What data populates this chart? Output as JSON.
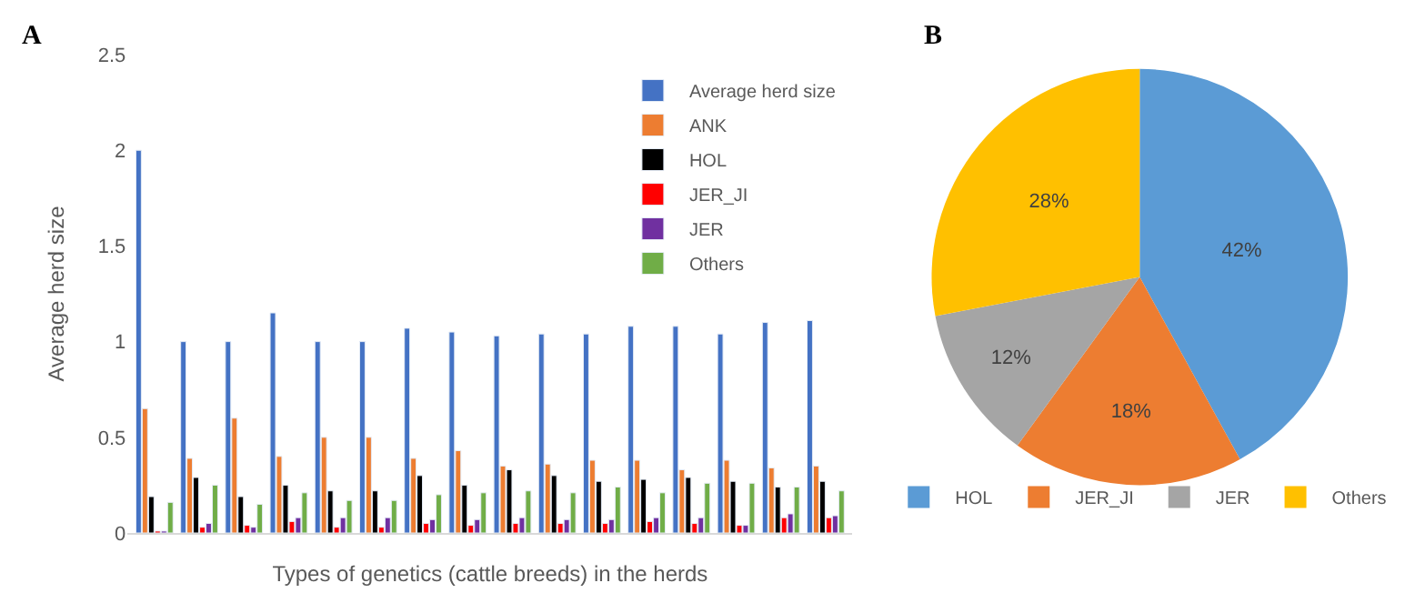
{
  "chart_data": [
    {
      "type": "bar",
      "title": "A",
      "xlabel": "Types of genetics (cattle breeds) in the herds",
      "ylabel": "Average herd size",
      "categories": [
        null,
        null,
        null,
        null,
        null,
        null,
        null,
        null,
        null,
        null,
        null,
        null,
        null,
        null,
        null,
        null
      ],
      "series": [
        {
          "name": "Average herd size",
          "color": "#4472c4",
          "values": [
            2.0,
            1.0,
            1.0,
            1.15,
            1.0,
            1.0,
            1.07,
            1.05,
            1.03,
            1.04,
            1.04,
            1.08,
            1.08,
            1.04,
            1.1,
            1.11
          ]
        },
        {
          "name": "ANK",
          "color": "#ed7d31",
          "values": [
            0.65,
            0.39,
            0.6,
            0.4,
            0.5,
            0.5,
            0.39,
            0.43,
            0.35,
            0.36,
            0.38,
            0.38,
            0.33,
            0.38,
            0.34,
            0.35
          ]
        },
        {
          "name": "HOL",
          "color": "#000000",
          "values": [
            0.19,
            0.29,
            0.19,
            0.25,
            0.22,
            0.22,
            0.3,
            0.25,
            0.33,
            0.3,
            0.27,
            0.28,
            0.29,
            0.27,
            0.24,
            0.27
          ]
        },
        {
          "name": "JER_JI",
          "color": "#ff0000",
          "values": [
            0.01,
            0.03,
            0.04,
            0.06,
            0.03,
            0.03,
            0.05,
            0.04,
            0.05,
            0.05,
            0.05,
            0.06,
            0.05,
            0.04,
            0.08,
            0.08
          ]
        },
        {
          "name": "JER",
          "color": "#7030a0",
          "values": [
            0.01,
            0.05,
            0.03,
            0.08,
            0.08,
            0.08,
            0.07,
            0.07,
            0.08,
            0.07,
            0.07,
            0.08,
            0.08,
            0.04,
            0.1,
            0.09
          ]
        },
        {
          "name": "Others",
          "color": "#70ad47",
          "values": [
            0.16,
            0.25,
            0.15,
            0.21,
            0.17,
            0.17,
            0.2,
            0.21,
            0.22,
            0.21,
            0.24,
            0.21,
            0.26,
            0.26,
            0.24,
            0.22
          ]
        }
      ],
      "ylim": [
        0,
        2.5
      ],
      "yticks": [
        0,
        0.5,
        1,
        1.5,
        2,
        2.5
      ],
      "legend": "top right"
    },
    {
      "type": "pie",
      "title": "B",
      "categories": [
        "HOL",
        "JER_JI",
        "JER",
        "Others"
      ],
      "values": [
        42,
        18,
        12,
        28
      ],
      "colors": [
        "#5b9bd5",
        "#ed7d31",
        "#a5a5a5",
        "#ffc000"
      ],
      "value_labels": [
        "42%",
        "18%",
        "12%",
        "28%"
      ],
      "legend": "bottom"
    }
  ]
}
